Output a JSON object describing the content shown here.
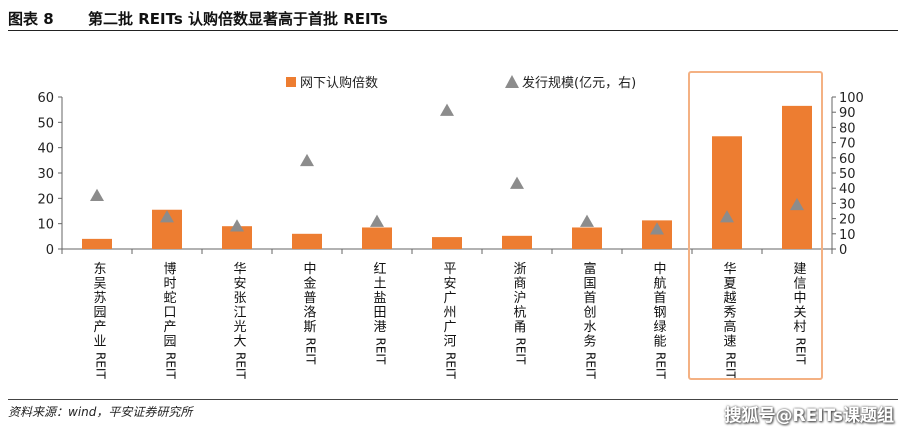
{
  "figure": {
    "label": "图表 8",
    "title": "第二批 REITs 认购倍数显著高于首批 REITs"
  },
  "source": "资料来源：wind，平安证券研究所",
  "watermark": "搜狐号@REITs课题组",
  "chart_data": {
    "type": "bar",
    "categories": [
      "东吴苏园产业REIT",
      "博时蛇口产园REIT",
      "华安张江光大REIT",
      "中金普洛斯REIT",
      "红土盐田港REIT",
      "平安广州广河REIT",
      "浙商沪杭甬REIT",
      "富国首创水务REIT",
      "中航首钢绿能REIT",
      "华夏越秀高速REIT",
      "建信中关村REIT"
    ],
    "series": [
      {
        "name": "网下认购倍数",
        "kind": "bar",
        "axis": "left",
        "color": "#ED7D31",
        "values": [
          4,
          15.5,
          9,
          6,
          8.5,
          4.7,
          5.2,
          8.5,
          11.3,
          44.5,
          56.5
        ]
      },
      {
        "name": "发行规模(亿元，右)",
        "kind": "scatter",
        "marker": "triangle",
        "axis": "right",
        "color": "#8C8C8C",
        "values": [
          35,
          21,
          15,
          58,
          18,
          91,
          43,
          18,
          13,
          21,
          29
        ]
      }
    ],
    "y_left": {
      "min": 0,
      "max": 60,
      "ticks": [
        0,
        10,
        20,
        30,
        40,
        50,
        60
      ]
    },
    "y_right": {
      "min": 0,
      "max": 100,
      "ticks": [
        0,
        10,
        20,
        30,
        40,
        50,
        60,
        70,
        80,
        90,
        100
      ]
    },
    "highlight": {
      "categories": [
        "华夏越秀高速REIT",
        "建信中关村REIT"
      ],
      "color": "#F4B183"
    },
    "legend_position": "top-center",
    "grid": false
  }
}
